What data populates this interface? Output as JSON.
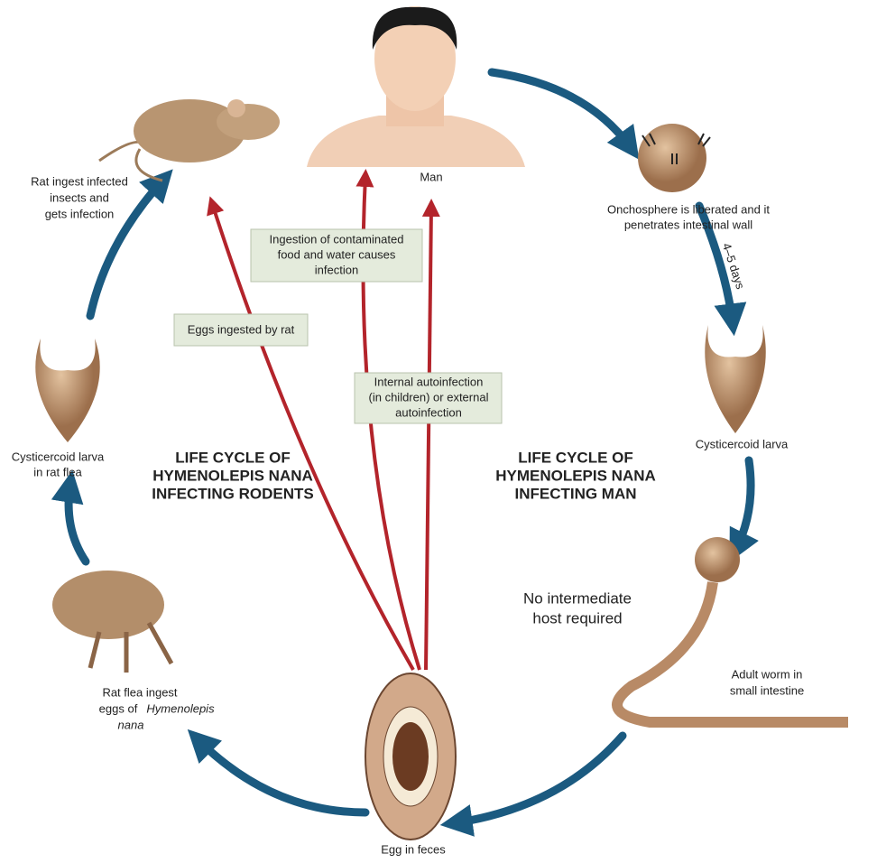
{
  "labels": {
    "man": "Man",
    "onchosphere": [
      "Onchosphere is liberated and it",
      "penetrates intestinal wall"
    ],
    "days": "4–5 days",
    "cysticercoid_man": "Cysticercoid larva",
    "adult_worm": [
      "Adult worm in",
      "small intestine"
    ],
    "egg": "Egg in feces",
    "rat_flea": {
      "line1": "Rat flea ingest",
      "line2": "eggs of",
      "line2_italic": "Hymenolepis",
      "line3_italic": "nana"
    },
    "cysticercoid_flea": [
      "Cysticercoid larva",
      "in rat flea"
    ],
    "rat": [
      "Rat ingest infected",
      "insects and",
      "gets infection"
    ],
    "no_intermediate": [
      "No intermediate",
      "host required"
    ]
  },
  "boxes": {
    "ingestion": [
      "Ingestion of contaminated",
      "food and water causes",
      "infection"
    ],
    "eggs_rat": [
      "Eggs ingested by rat"
    ],
    "autoinfection": [
      "Internal autoinfection",
      "(in children) or external",
      "autoinfection"
    ]
  },
  "titles": {
    "rodents": [
      "LIFE CYCLE OF",
      "HYMENOLEPIS NANA",
      "INFECTING RODENTS"
    ],
    "man": [
      "LIFE CYCLE OF",
      "HYMENOLEPIS NANA",
      "INFECTING MAN"
    ]
  }
}
